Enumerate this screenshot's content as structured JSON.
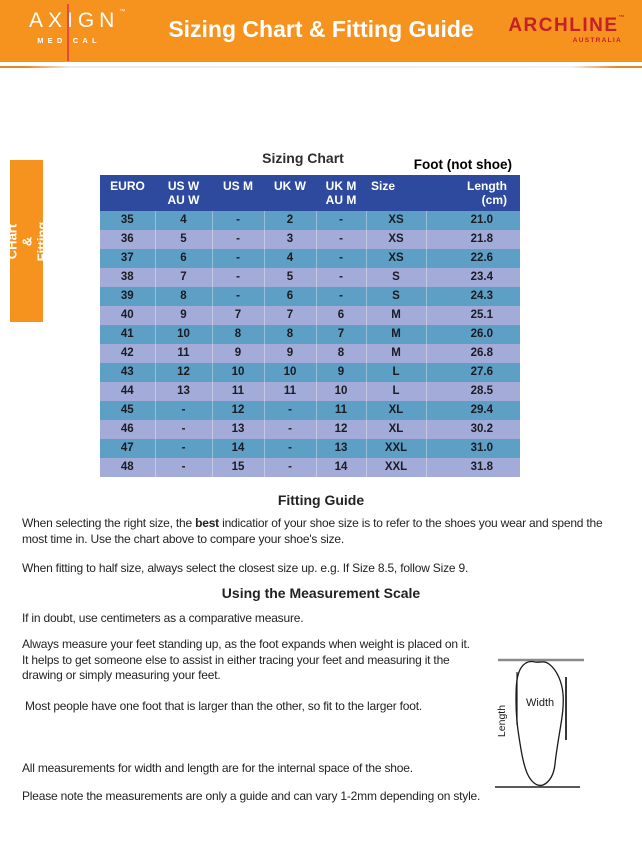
{
  "header": {
    "title": "Sizing Chart & Fitting Guide",
    "axign": {
      "name": "AXIGN",
      "tm": "™",
      "sub": "MEDICAL"
    },
    "archline": {
      "name": "ARCHLINE",
      "tm": "™",
      "sub": "AUSTRALIA"
    }
  },
  "side_tab": {
    "label": "Sizing CHart\n& Fitting Guide"
  },
  "table": {
    "title": "Sizing Chart",
    "foot_note": "Foot (not shoe)",
    "columns": [
      "EURO",
      "US W\nAU W",
      "US M",
      "UK W",
      "UK M\nAU M",
      "Size",
      "Length\n(cm)"
    ],
    "rows": [
      [
        "35",
        "4",
        "-",
        "2",
        "-",
        "XS",
        "21.0"
      ],
      [
        "36",
        "5",
        "-",
        "3",
        "-",
        "XS",
        "21.8"
      ],
      [
        "37",
        "6",
        "-",
        "4",
        "-",
        "XS",
        "22.6"
      ],
      [
        "38",
        "7",
        "-",
        "5",
        "-",
        "S",
        "23.4"
      ],
      [
        "39",
        "8",
        "-",
        "6",
        "-",
        "S",
        "24.3"
      ],
      [
        "40",
        "9",
        "7",
        "7",
        "6",
        "M",
        "25.1"
      ],
      [
        "41",
        "10",
        "8",
        "8",
        "7",
        "M",
        "26.0"
      ],
      [
        "42",
        "11",
        "9",
        "9",
        "8",
        "M",
        "26.8"
      ],
      [
        "43",
        "12",
        "10",
        "10",
        "9",
        "L",
        "27.6"
      ],
      [
        "44",
        "13",
        "11",
        "11",
        "10",
        "L",
        "28.5"
      ],
      [
        "45",
        "-",
        "12",
        "-",
        "11",
        "XL",
        "29.4"
      ],
      [
        "46",
        "-",
        "13",
        "-",
        "12",
        "XL",
        "30.2"
      ],
      [
        "47",
        "-",
        "14",
        "-",
        "13",
        "XXL",
        "31.0"
      ],
      [
        "48",
        "-",
        "15",
        "-",
        "14",
        "XXL",
        "31.8"
      ]
    ]
  },
  "fitting_guide": {
    "heading": "Fitting Guide",
    "p1_before": "When selecting the right size, the ",
    "p1_bold": "best",
    "p1_after": " indicatior of your shoe size is to refer to the shoes you wear and spend the most time in. Use the chart above to compare your shoe's size.",
    "p2": "When fitting to half size, always select the closest size up. e.g. If Size 8.5, follow Size 9."
  },
  "measurement": {
    "heading": "Using the Measurement Scale",
    "p1": "If in doubt, use centimeters as a comparative measure.",
    "p2": "Always measure your feet standing up, as the foot expands when weight is placed on it. It helps to get someone else to assist in either tracing your feet and measuring it the drawing or simply measuring your feet.",
    "p3": "Most people have one foot that is larger than the other, so fit to the larger foot.",
    "p4": "All measurements for width and length are for the internal space of the shoe.",
    "p5": "Please note the measurements are only a guide and can vary 1-2mm depending on style.",
    "diagram": {
      "width_label": "Width",
      "length_label": "Length"
    }
  },
  "colors": {
    "orange": "#F6921E",
    "table_header_blue": "#2E4A9E",
    "row_steel_blue": "#5E9FC6",
    "row_periwinkle": "#A3ACD8",
    "archline_red": "#C4202B",
    "axign_line_red": "#E8483F"
  }
}
